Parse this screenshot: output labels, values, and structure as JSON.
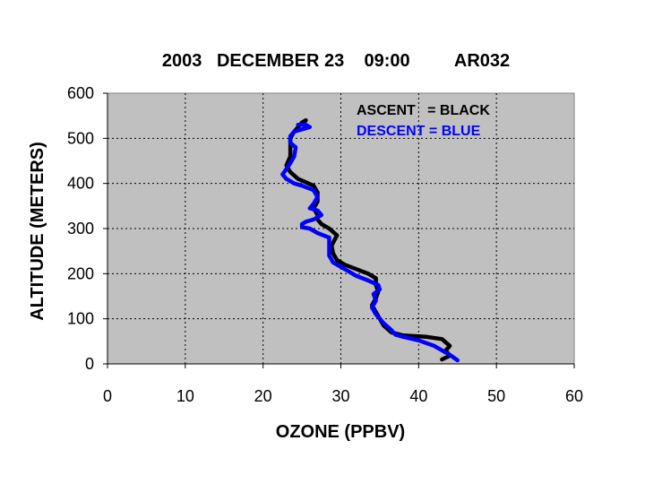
{
  "chart_data": {
    "type": "line",
    "title": "2003   DECEMBER 23    09:00         AR032",
    "xlabel": "OZONE (PPBV)",
    "ylabel": "ALTITUDE (METERS)",
    "xlim": [
      0,
      60
    ],
    "ylim": [
      0,
      600
    ],
    "xticks": [
      "0",
      "10",
      "20",
      "30",
      "40",
      "50",
      "60"
    ],
    "yticks": [
      "0",
      "100",
      "200",
      "300",
      "400",
      "500",
      "600"
    ],
    "grid": true,
    "background": "#c0c0c0",
    "legend_position": "top-right",
    "legend": [
      "ASCENT   = BLACK",
      "DESCENT = BLUE"
    ],
    "series": [
      {
        "color": "#000000",
        "points": [
          [
            43,
            10
          ],
          [
            44,
            18
          ],
          [
            43.5,
            30
          ],
          [
            44,
            40
          ],
          [
            43,
            55
          ],
          [
            41,
            60
          ],
          [
            38,
            63
          ],
          [
            36.5,
            70
          ],
          [
            35.5,
            85
          ],
          [
            35,
            100
          ],
          [
            34.5,
            115
          ],
          [
            34,
            130
          ],
          [
            34.5,
            145
          ],
          [
            34.8,
            160
          ],
          [
            34.5,
            175
          ],
          [
            34.5,
            190
          ],
          [
            33.5,
            200
          ],
          [
            32,
            210
          ],
          [
            30.5,
            220
          ],
          [
            29.5,
            230
          ],
          [
            29,
            245
          ],
          [
            28.8,
            262
          ],
          [
            29.5,
            285
          ],
          [
            28.5,
            300
          ],
          [
            27.5,
            310
          ],
          [
            27,
            320
          ],
          [
            27,
            330
          ],
          [
            26.5,
            345
          ],
          [
            27,
            360
          ],
          [
            27,
            380
          ],
          [
            26.5,
            395
          ],
          [
            24.5,
            410
          ],
          [
            23.5,
            425
          ],
          [
            23,
            440
          ],
          [
            23.5,
            460
          ],
          [
            23.5,
            480
          ],
          [
            23.5,
            500
          ],
          [
            24,
            515
          ],
          [
            24.5,
            525
          ],
          [
            25,
            535
          ],
          [
            25.5,
            540
          ],
          [
            25,
            530
          ]
        ]
      },
      {
        "color": "#0000ff",
        "points": [
          [
            45,
            8
          ],
          [
            44,
            20
          ],
          [
            42,
            40
          ],
          [
            40,
            52
          ],
          [
            38,
            60
          ],
          [
            37,
            65
          ],
          [
            36.5,
            75
          ],
          [
            35.5,
            90
          ],
          [
            35,
            100
          ],
          [
            34.5,
            110
          ],
          [
            34,
            125
          ],
          [
            34.5,
            140
          ],
          [
            34.2,
            155
          ],
          [
            35,
            165
          ],
          [
            34.8,
            175
          ],
          [
            33.5,
            185
          ],
          [
            32,
            195
          ],
          [
            31,
            205
          ],
          [
            30,
            215
          ],
          [
            29,
            225
          ],
          [
            28.5,
            240
          ],
          [
            28.5,
            260
          ],
          [
            28.5,
            280
          ],
          [
            27,
            290
          ],
          [
            26,
            300
          ],
          [
            25,
            303
          ],
          [
            25,
            310
          ],
          [
            25.5,
            315
          ],
          [
            26.5,
            320
          ],
          [
            27.5,
            330
          ],
          [
            27,
            340
          ],
          [
            26,
            345
          ],
          [
            26.5,
            355
          ],
          [
            27,
            370
          ],
          [
            26.5,
            385
          ],
          [
            25,
            395
          ],
          [
            24,
            400
          ],
          [
            23,
            410
          ],
          [
            22.5,
            420
          ],
          [
            23,
            432
          ],
          [
            23.5,
            445
          ],
          [
            24,
            460
          ],
          [
            24.2,
            480
          ],
          [
            23.5,
            490
          ],
          [
            23.5,
            505
          ],
          [
            24,
            515
          ],
          [
            25,
            520
          ],
          [
            26,
            525
          ],
          [
            25.5,
            530
          ],
          [
            24.5,
            530
          ]
        ]
      }
    ]
  }
}
